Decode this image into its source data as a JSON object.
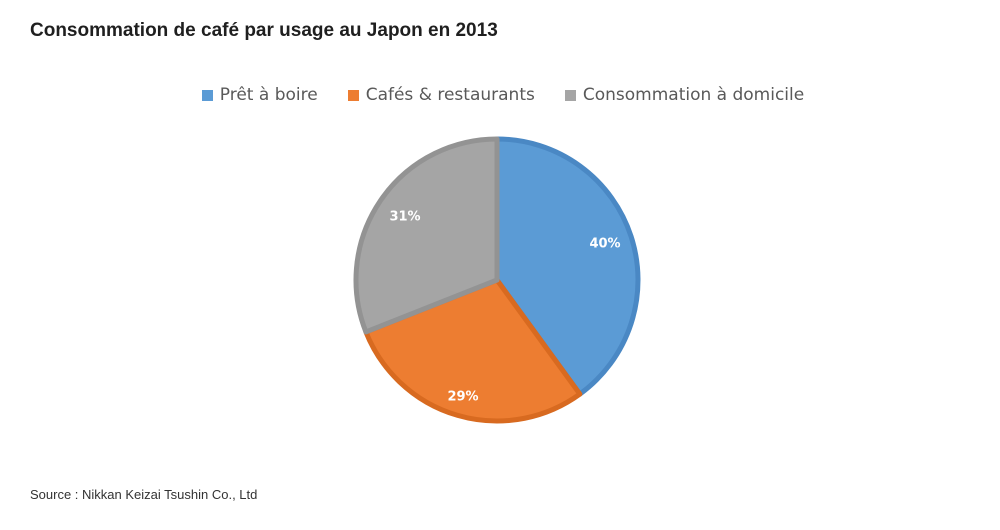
{
  "chart_data": {
    "type": "pie",
    "title": "Consommation de café par usage au Japon en 2013",
    "source": "Source : Nikkan Keizai Tsushin Co., Ltd",
    "legend_position": "top",
    "slices": [
      {
        "name": "Prêt à boire",
        "value": 40,
        "label": "40%",
        "color": "#5b9bd5",
        "edge": "#4a88c4"
      },
      {
        "name": "Cafés & restaurants",
        "value": 29,
        "label": "29%",
        "color": "#ed7d31",
        "edge": "#d86a20"
      },
      {
        "name": "Consommation  à domicile",
        "value": 31,
        "label": "31%",
        "color": "#a5a5a5",
        "edge": "#939393"
      }
    ]
  }
}
